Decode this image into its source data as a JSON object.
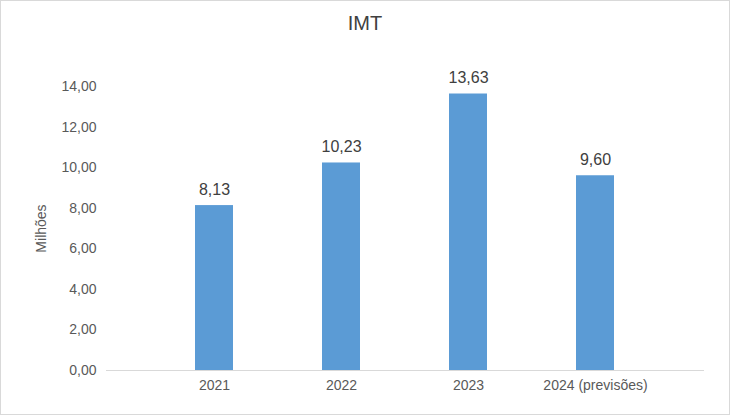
{
  "chart_data": {
    "type": "bar",
    "title": "IMT",
    "y_label": "Milhões",
    "categories": [
      "2021",
      "2022",
      "2023",
      "2024 (previsões)"
    ],
    "values": [
      8.13,
      10.23,
      13.63,
      9.6
    ],
    "value_labels": [
      "8,13",
      "10,23",
      "13,63",
      "9,60"
    ],
    "color": "#5b9bd5",
    "ylim": [
      0,
      14
    ],
    "yticks": [
      {
        "value": 0,
        "label": "0,00"
      },
      {
        "value": 2,
        "label": "2,00"
      },
      {
        "value": 4,
        "label": "4,00"
      },
      {
        "value": 6,
        "label": "6,00"
      },
      {
        "value": 8,
        "label": "8,00"
      },
      {
        "value": 10,
        "label": "10,00"
      },
      {
        "value": 12,
        "label": "12,00"
      },
      {
        "value": 14,
        "label": "14,00"
      }
    ],
    "grid": false,
    "data_labels": true
  }
}
